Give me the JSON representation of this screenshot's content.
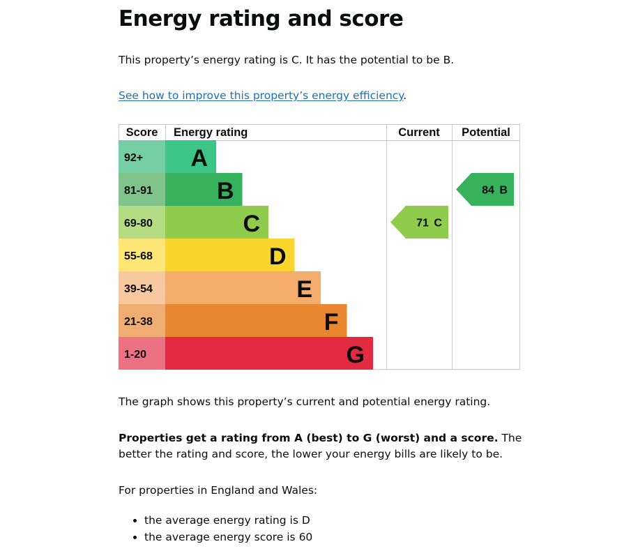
{
  "page": {
    "title": "Energy rating and score",
    "intro": "This property’s energy rating is C. It has the potential to be B.",
    "link_text": "See how to improve this property’s energy efficiency",
    "link_suffix": ".",
    "graph_caption": "The graph shows this property’s current and potential energy rating.",
    "props_bold": "Properties get a rating from A (best) to G (worst) and a score.",
    "props_rest": " The better the rating and score, the lower your energy bills are likely to be.",
    "england_wales": "For properties in England and Wales:",
    "averages": [
      "the average energy rating is D",
      "the average energy score is 60"
    ]
  },
  "chart_data": {
    "type": "bar",
    "headers": {
      "score": "Score",
      "rating": "Energy rating",
      "current": "Current",
      "potential": "Potential"
    },
    "bands": [
      {
        "letter": "A",
        "range": "92+",
        "color": "#3cc587",
        "light": "#76cfa2",
        "min": 92
      },
      {
        "letter": "B",
        "range": "81-91",
        "color": "#36b25d",
        "light": "#80c48b",
        "min": 81
      },
      {
        "letter": "C",
        "range": "69-80",
        "color": "#8fcc4b",
        "light": "#b4dc83",
        "min": 69
      },
      {
        "letter": "D",
        "range": "55-68",
        "color": "#fad52d",
        "light": "#fde676",
        "min": 55
      },
      {
        "letter": "E",
        "range": "39-54",
        "color": "#f4ac6c",
        "light": "#f8c89e",
        "min": 39
      },
      {
        "letter": "F",
        "range": "21-38",
        "color": "#e98731",
        "light": "#f0ad73",
        "min": 21
      },
      {
        "letter": "G",
        "range": "1-20",
        "color": "#e22a40",
        "light": "#ec7182",
        "min": 1
      }
    ],
    "current": {
      "score": 71,
      "band": "C",
      "label": "71 C",
      "color": "#8fcc4b"
    },
    "potential": {
      "score": 84,
      "band": "B",
      "label": "84 B",
      "color": "#36b25d"
    }
  }
}
